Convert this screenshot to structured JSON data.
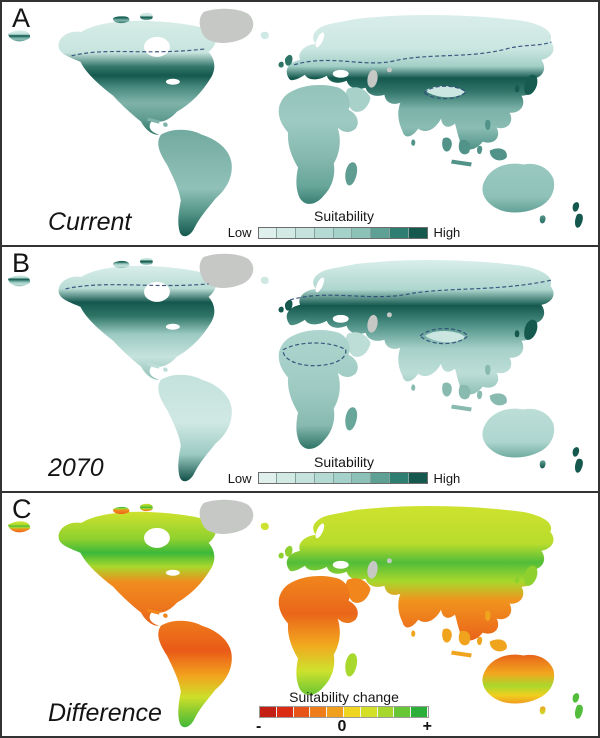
{
  "panels": [
    {
      "letter": "A",
      "caption": "Current",
      "legend": {
        "title": "Suitability",
        "left_label": "Low",
        "right_label": "High",
        "colors": [
          "#dff0ec",
          "#d2e9e4",
          "#c5e2dc",
          "#b5dad3",
          "#a4d1c9",
          "#8cc1b8",
          "#5fa094",
          "#2e7e72",
          "#14584e"
        ]
      }
    },
    {
      "letter": "B",
      "caption": "2070",
      "legend": {
        "title": "Suitability",
        "left_label": "Low",
        "right_label": "High",
        "colors": [
          "#dff0ec",
          "#d2e9e4",
          "#c5e2dc",
          "#b5dad3",
          "#a4d1c9",
          "#8cc1b8",
          "#5fa094",
          "#2e7e72",
          "#14584e"
        ]
      }
    },
    {
      "letter": "C",
      "caption": "Difference",
      "legend": {
        "title": "Suitability change",
        "left_label": "-",
        "center_label": "0",
        "right_label": "+",
        "colors": [
          "#c41f14",
          "#da2d14",
          "#e85418",
          "#ee7d1a",
          "#f0a01c",
          "#f0d520",
          "#d4df28",
          "#a6d72c",
          "#68c534",
          "#2bae3a"
        ]
      }
    }
  ],
  "colors": {
    "sea": "#ffffff",
    "no_data_gray": "#c6c8c6",
    "dashed_boundary_line": "#2e4a78",
    "suitability_low": "#dff0ec",
    "suitability_high": "#14584e",
    "change_negative": "#c41f14",
    "change_zero": "#f0d520",
    "change_positive": "#2bae3a"
  }
}
